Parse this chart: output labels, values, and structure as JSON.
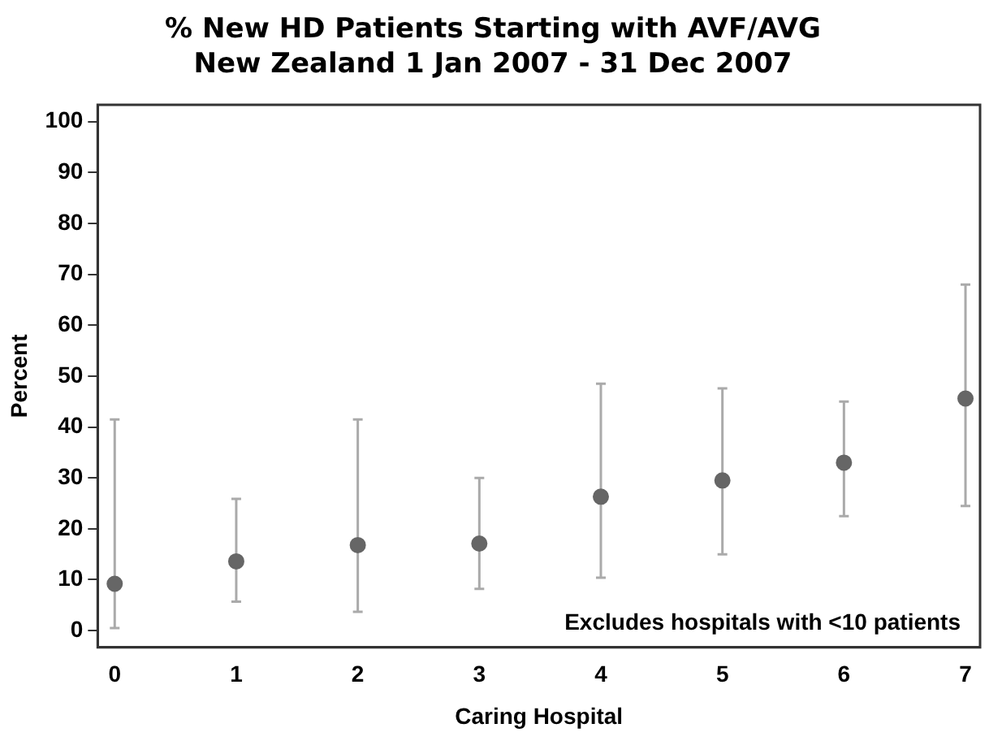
{
  "chart_data": {
    "type": "scatter",
    "title": "% New HD Patients Starting with AVF/AVG\nNew Zealand 1 Jan 2007 - 31 Dec 2007",
    "xlabel": "Caring Hospital",
    "ylabel": "Percent",
    "x": [
      0,
      1,
      2,
      3,
      4,
      5,
      6,
      7
    ],
    "series": [
      {
        "color": "#666666",
        "values": [
          9.2,
          13.6,
          16.8,
          17.1,
          26.3,
          29.5,
          33.0,
          45.6
        ],
        "errors": [
          [
            0.5,
            41.5
          ],
          [
            5.7,
            25.9
          ],
          [
            3.7,
            41.5
          ],
          [
            8.2,
            30.0
          ],
          [
            10.4,
            48.5
          ],
          [
            15.0,
            47.6
          ],
          [
            22.5,
            45.0
          ],
          [
            24.5,
            68.0
          ]
        ]
      }
    ],
    "xlim": [
      -0.14,
      7.12
    ],
    "xticks": [
      0,
      1,
      2,
      3,
      4,
      5,
      6,
      7
    ],
    "ylim": [
      -3.3,
      103.3
    ],
    "yticks": [
      0,
      10,
      20,
      30,
      40,
      50,
      60,
      70,
      80,
      90,
      100
    ],
    "marker": "circle",
    "grid": false,
    "legend": false,
    "annotations": [
      "Excludes hospitals with <10 patients"
    ]
  }
}
